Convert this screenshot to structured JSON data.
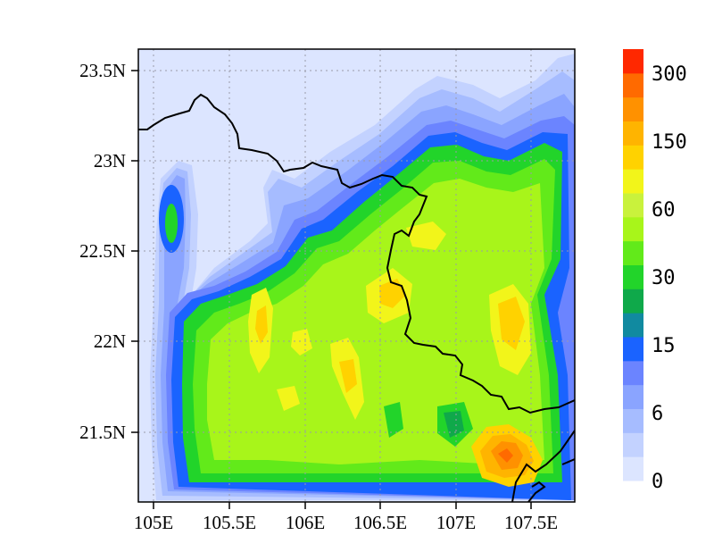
{
  "map": {
    "lon_ticks": [
      "105E",
      "105.5E",
      "106E",
      "106.5E",
      "107E",
      "107.5E"
    ],
    "lat_ticks": [
      "23.5N",
      "23N",
      "22.5N",
      "22N",
      "21.5N"
    ],
    "extent": {
      "lon_min": 104.9,
      "lon_max": 107.8,
      "lat_min": 21.1,
      "lat_max": 23.6
    },
    "gridlines": true,
    "gridline_style": "dotted"
  },
  "colorbar": {
    "position": "right",
    "labels": [
      "0",
      "6",
      "15",
      "30",
      "60",
      "150",
      "300"
    ],
    "colors": [
      "#dce5ff",
      "#c3d2ff",
      "#a6bcff",
      "#8aa4ff",
      "#6b84ff",
      "#1a63ff",
      "#118aa0",
      "#0fa94a",
      "#22d42a",
      "#62ea1a",
      "#a8f51a",
      "#c9f23c",
      "#f2f51a",
      "#ffd200",
      "#ffb400",
      "#ff9100",
      "#ff6a00",
      "#ff2800"
    ]
  },
  "field_colors": {
    "c0": "#dce5ff",
    "c1": "#c3d2ff",
    "c2": "#a6bcff",
    "c3": "#8aa4ff",
    "c4": "#6b84ff",
    "c5": "#1a63ff",
    "c6": "#118aa0",
    "c7": "#0fa94a",
    "c8": "#22d42a",
    "c9": "#62ea1a",
    "c10": "#a8f51a",
    "c11": "#c9f23c",
    "c12": "#f2f51a",
    "c13": "#ffd200",
    "c14": "#ffb400",
    "c15": "#ff9100",
    "c16": "#ff6a00",
    "c17": "#ff2800"
  }
}
